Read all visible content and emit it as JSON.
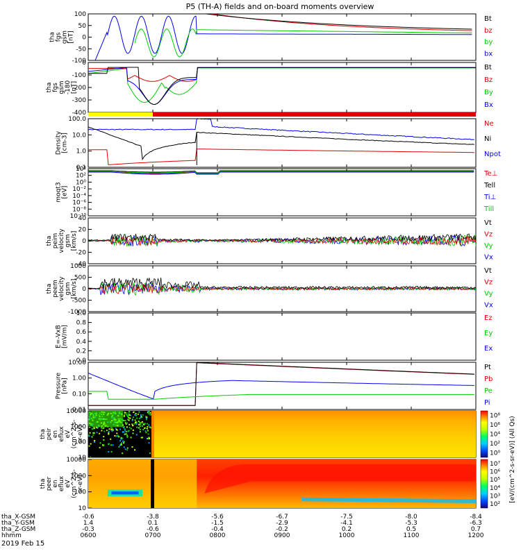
{
  "title": "P5 (TH-A) fields and on-board moments overview",
  "date_label": "2019 Feb 15",
  "colors": {
    "black": "#000000",
    "red": "#e00000",
    "green": "#00cc00",
    "blue": "#0000ee",
    "yellow": "#ffff00"
  },
  "chart_data": [
    {
      "type": "line",
      "ylabel": [
        "tha",
        "fgs",
        "gsm",
        "[nT]"
      ],
      "ylim": [
        -100,
        100
      ],
      "yticks": [
        "100",
        "50",
        "0",
        "-50",
        "-100"
      ],
      "legend": [
        "Bt",
        "bz",
        "by",
        "bx"
      ],
      "legend_colors": [
        "black",
        "red",
        "green",
        "blue"
      ]
    },
    {
      "type": "line",
      "ylabel": [
        "tha",
        "fgs",
        "gsm",
        "-180",
        "[nT]"
      ],
      "ylim": [
        -450,
        50
      ],
      "yticks": [
        "0",
        "-100",
        "-200",
        "-300",
        "-400"
      ],
      "legend": [
        "Bt",
        "Bz",
        "By",
        "Bx"
      ],
      "legend_colors": [
        "black",
        "red",
        "green",
        "blue"
      ]
    },
    {
      "type": "bar",
      "label": "mode bar",
      "segments": [
        {
          "from": "0600",
          "to": "0700",
          "color": "yellow"
        },
        {
          "from": "0700",
          "to": "1200",
          "color": "red"
        }
      ]
    },
    {
      "type": "line",
      "log": true,
      "ylabel": [
        "Density",
        "[cm-3]"
      ],
      "yticks": [
        "100.0",
        "10.0",
        "1.0",
        "0.1"
      ],
      "legend": [
        "Ne",
        "Ni",
        "Npot"
      ],
      "legend_colors": [
        "red",
        "black",
        "blue"
      ]
    },
    {
      "type": "line",
      "log": true,
      "ylabel": [
        "moqt3",
        "[eV]"
      ],
      "yticks": [
        "10⁴",
        "10²",
        "10⁰",
        "10⁻²",
        "10⁻⁴",
        "10⁻⁶",
        "10⁻⁸",
        "10⁻¹⁰"
      ],
      "legend": [
        "Te⊥",
        "Tell",
        "Ti⊥",
        "Till"
      ],
      "legend_colors": [
        "red",
        "black",
        "blue",
        "green"
      ]
    },
    {
      "type": "line",
      "ylabel": [
        "tha",
        "peim",
        "velocity",
        "gsm",
        "[km/s]"
      ],
      "ylim": [
        -40,
        40
      ],
      "yticks": [
        "40",
        "20",
        "0",
        "-20",
        "-40"
      ],
      "legend": [
        "Vt",
        "Vz",
        "Vy",
        "Vx"
      ],
      "legend_colors": [
        "black",
        "red",
        "green",
        "blue"
      ]
    },
    {
      "type": "line",
      "ylabel": [
        "tha",
        "peem",
        "velocity",
        "gsm",
        "[km/s]"
      ],
      "ylim": [
        -1000,
        1000
      ],
      "yticks": [
        "1000",
        "500",
        "0",
        "-500",
        "-1000"
      ],
      "legend": [
        "Vt",
        "Vz",
        "Vy",
        "Vx"
      ],
      "legend_colors": [
        "black",
        "red",
        "green",
        "blue"
      ]
    },
    {
      "type": "line",
      "ylabel": [
        "E=-VxB",
        "[mV/m]"
      ],
      "yticks": [
        "1.0",
        "0.8",
        "0.6",
        "0.4",
        "0.2",
        "0.0"
      ],
      "legend": [
        "Ez",
        "Ey",
        "Ex"
      ],
      "legend_colors": [
        "red",
        "green",
        "blue"
      ]
    },
    {
      "type": "line",
      "log": true,
      "ylabel": [
        "Pressure",
        "[nPa]"
      ],
      "yticks": [
        "10.00",
        "1.00",
        "0.10",
        "0.01"
      ],
      "legend": [
        "Pt",
        "Pb",
        "Pe",
        "Pi"
      ],
      "legend_colors": [
        "black",
        "red",
        "green",
        "blue"
      ]
    },
    {
      "type": "heatmap",
      "ylabel": [
        "tha",
        "peir",
        "en",
        "eflux",
        "eV",
        "(cm^2-s-",
        "sr-eV)"
      ],
      "yticks": [
        "10000",
        "1000",
        "100",
        "10"
      ],
      "colorbar_ticks": [
        "10⁸",
        "10⁶",
        "10⁴",
        "10²",
        "10⁰"
      ]
    },
    {
      "type": "heatmap",
      "ylabel": [
        "tha",
        "peer",
        "en",
        "eflux",
        "eV",
        "(cm^2-s-",
        "sr-eV)"
      ],
      "yticks": [
        "10000",
        "1000",
        "100",
        "10"
      ],
      "colorbar_ticks": [
        "10⁷",
        "10⁶",
        "10⁵",
        "10⁴",
        "10³",
        "10²"
      ]
    }
  ],
  "colorbar_label": "[eV/(cm^2-s-sr-eV)] (All Qs)",
  "xaxis": {
    "rows": [
      {
        "label": "tha_X-GSM",
        "values": [
          "-0.6",
          "-3.8",
          "-5.6",
          "-6.7",
          "-7.5",
          "-8.0",
          "-8.4"
        ]
      },
      {
        "label": "tha_Y-GSM",
        "values": [
          "1.4",
          "0.1",
          "-1.5",
          "-2.9",
          "-4.1",
          "-5.3",
          "-6.3"
        ]
      },
      {
        "label": "tha_Z-GSM",
        "values": [
          "-0.3",
          "-0.6",
          "-0.4",
          "-0.2",
          "0.2",
          "0.5",
          "0.7"
        ]
      },
      {
        "label": "hhmm",
        "values": [
          "0600",
          "0700",
          "0800",
          "0900",
          "1000",
          "1100",
          "1200"
        ]
      }
    ]
  }
}
